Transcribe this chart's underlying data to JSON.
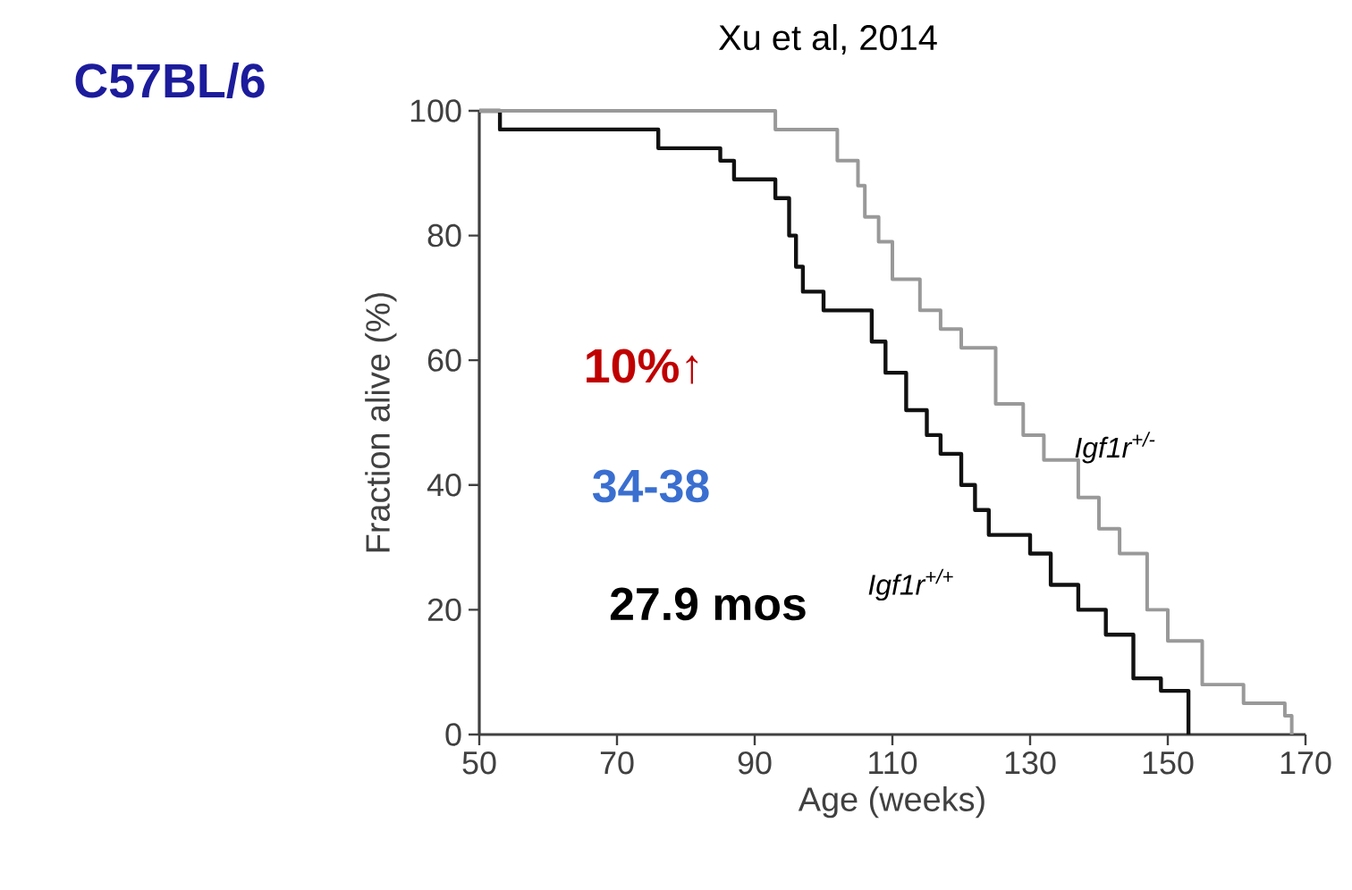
{
  "chart_data": {
    "type": "step",
    "title": "Xu et al, 2014",
    "xlabel": "Age (weeks)",
    "ylabel": "Fraction alive (%)",
    "annotations": [
      "C57BL/6",
      "10%↑",
      "34-38",
      "27.9 mos"
    ],
    "series": [
      {
        "name": "Igf1r$^{+/+}$",
        "color": "#111111",
        "x": [
          50,
          53,
          76,
          85,
          87,
          93,
          95,
          96,
          97,
          100,
          107,
          109,
          112,
          115,
          117,
          120,
          122,
          124,
          130,
          133,
          137,
          141,
          145,
          149,
          153
        ],
        "values": [
          100,
          97,
          94,
          92,
          89,
          86,
          80,
          75,
          71,
          68,
          63,
          58,
          52,
          48,
          45,
          40,
          36,
          32,
          29,
          24,
          20,
          16,
          9,
          7,
          0
        ]
      },
      {
        "name": "Igf1r$^{+/-}$",
        "color": "#999999",
        "x": [
          50,
          93,
          102,
          105,
          106,
          108,
          110,
          114,
          117,
          120,
          125,
          129,
          132,
          137,
          140,
          143,
          147,
          150,
          155,
          161,
          167,
          168
        ],
        "values": [
          100,
          97,
          92,
          88,
          83,
          79,
          73,
          68,
          65,
          62,
          53,
          48,
          44,
          38,
          33,
          29,
          20,
          15,
          8,
          5,
          3,
          0
        ]
      }
    ],
    "xlim": [
      50,
      170
    ],
    "ylim": [
      0,
      100
    ],
    "xticks": [
      50,
      70,
      90,
      110,
      130,
      150,
      170
    ],
    "yticks": [
      0,
      20,
      40,
      60,
      80,
      100
    ],
    "grid": false
  }
}
